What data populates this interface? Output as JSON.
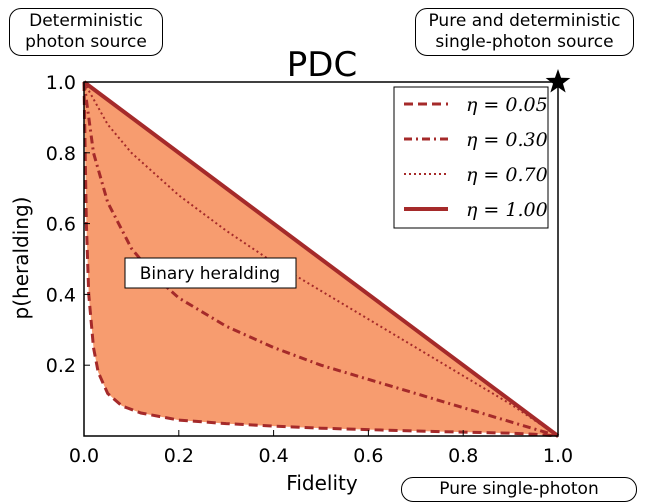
{
  "chart_data": {
    "type": "line",
    "title": "PDC",
    "xlabel": "Fidelity",
    "ylabel": "p(heralding)",
    "xlim": [
      0.0,
      1.0
    ],
    "ylim": [
      0.0,
      1.0
    ],
    "xticks": [
      "0.0",
      "0.2",
      "0.4",
      "0.6",
      "0.8",
      "1.0"
    ],
    "yticks": [
      "0.2",
      "0.4",
      "0.6",
      "0.8",
      "1.0"
    ],
    "grid": false,
    "legend_position": "top-right",
    "fill_region": {
      "label": "Binary heralding",
      "color": "#f79c6f"
    },
    "series": [
      {
        "name": "η = 0.05",
        "style": "dashed",
        "color": "#a52a2a",
        "x": [
          0.0,
          0.005,
          0.01,
          0.02,
          0.03,
          0.05,
          0.08,
          0.12,
          0.2,
          0.3,
          0.4,
          0.5,
          0.6,
          0.7,
          0.8,
          0.9,
          0.95,
          1.0
        ],
        "y": [
          1.0,
          0.6,
          0.4,
          0.25,
          0.18,
          0.12,
          0.085,
          0.065,
          0.045,
          0.035,
          0.028,
          0.022,
          0.018,
          0.014,
          0.011,
          0.008,
          0.005,
          0.0
        ]
      },
      {
        "name": "η = 0.30",
        "style": "dashdot",
        "color": "#a52a2a",
        "x": [
          0.0,
          0.02,
          0.05,
          0.1,
          0.15,
          0.2,
          0.3,
          0.4,
          0.5,
          0.6,
          0.7,
          0.8,
          0.9,
          1.0
        ],
        "y": [
          1.0,
          0.8,
          0.66,
          0.53,
          0.45,
          0.39,
          0.31,
          0.25,
          0.2,
          0.16,
          0.12,
          0.08,
          0.04,
          0.0
        ]
      },
      {
        "name": "η = 0.70",
        "style": "dotted",
        "color": "#a52a2a",
        "x": [
          0.0,
          0.05,
          0.1,
          0.2,
          0.3,
          0.4,
          0.5,
          0.6,
          0.7,
          0.8,
          0.9,
          1.0
        ],
        "y": [
          1.0,
          0.88,
          0.8,
          0.68,
          0.58,
          0.49,
          0.41,
          0.33,
          0.25,
          0.17,
          0.09,
          0.0
        ]
      },
      {
        "name": "η = 1.00",
        "style": "solid",
        "color": "#a52a2a",
        "x": [
          0.0,
          1.0
        ],
        "y": [
          1.0,
          0.0
        ]
      }
    ]
  },
  "annotations": {
    "top_left": [
      "Deterministic",
      "photon source"
    ],
    "top_right": [
      "Pure and deterministic",
      "single-photon source"
    ],
    "bottom_right": "Pure single-photon source",
    "star_marker": "star-icon"
  }
}
